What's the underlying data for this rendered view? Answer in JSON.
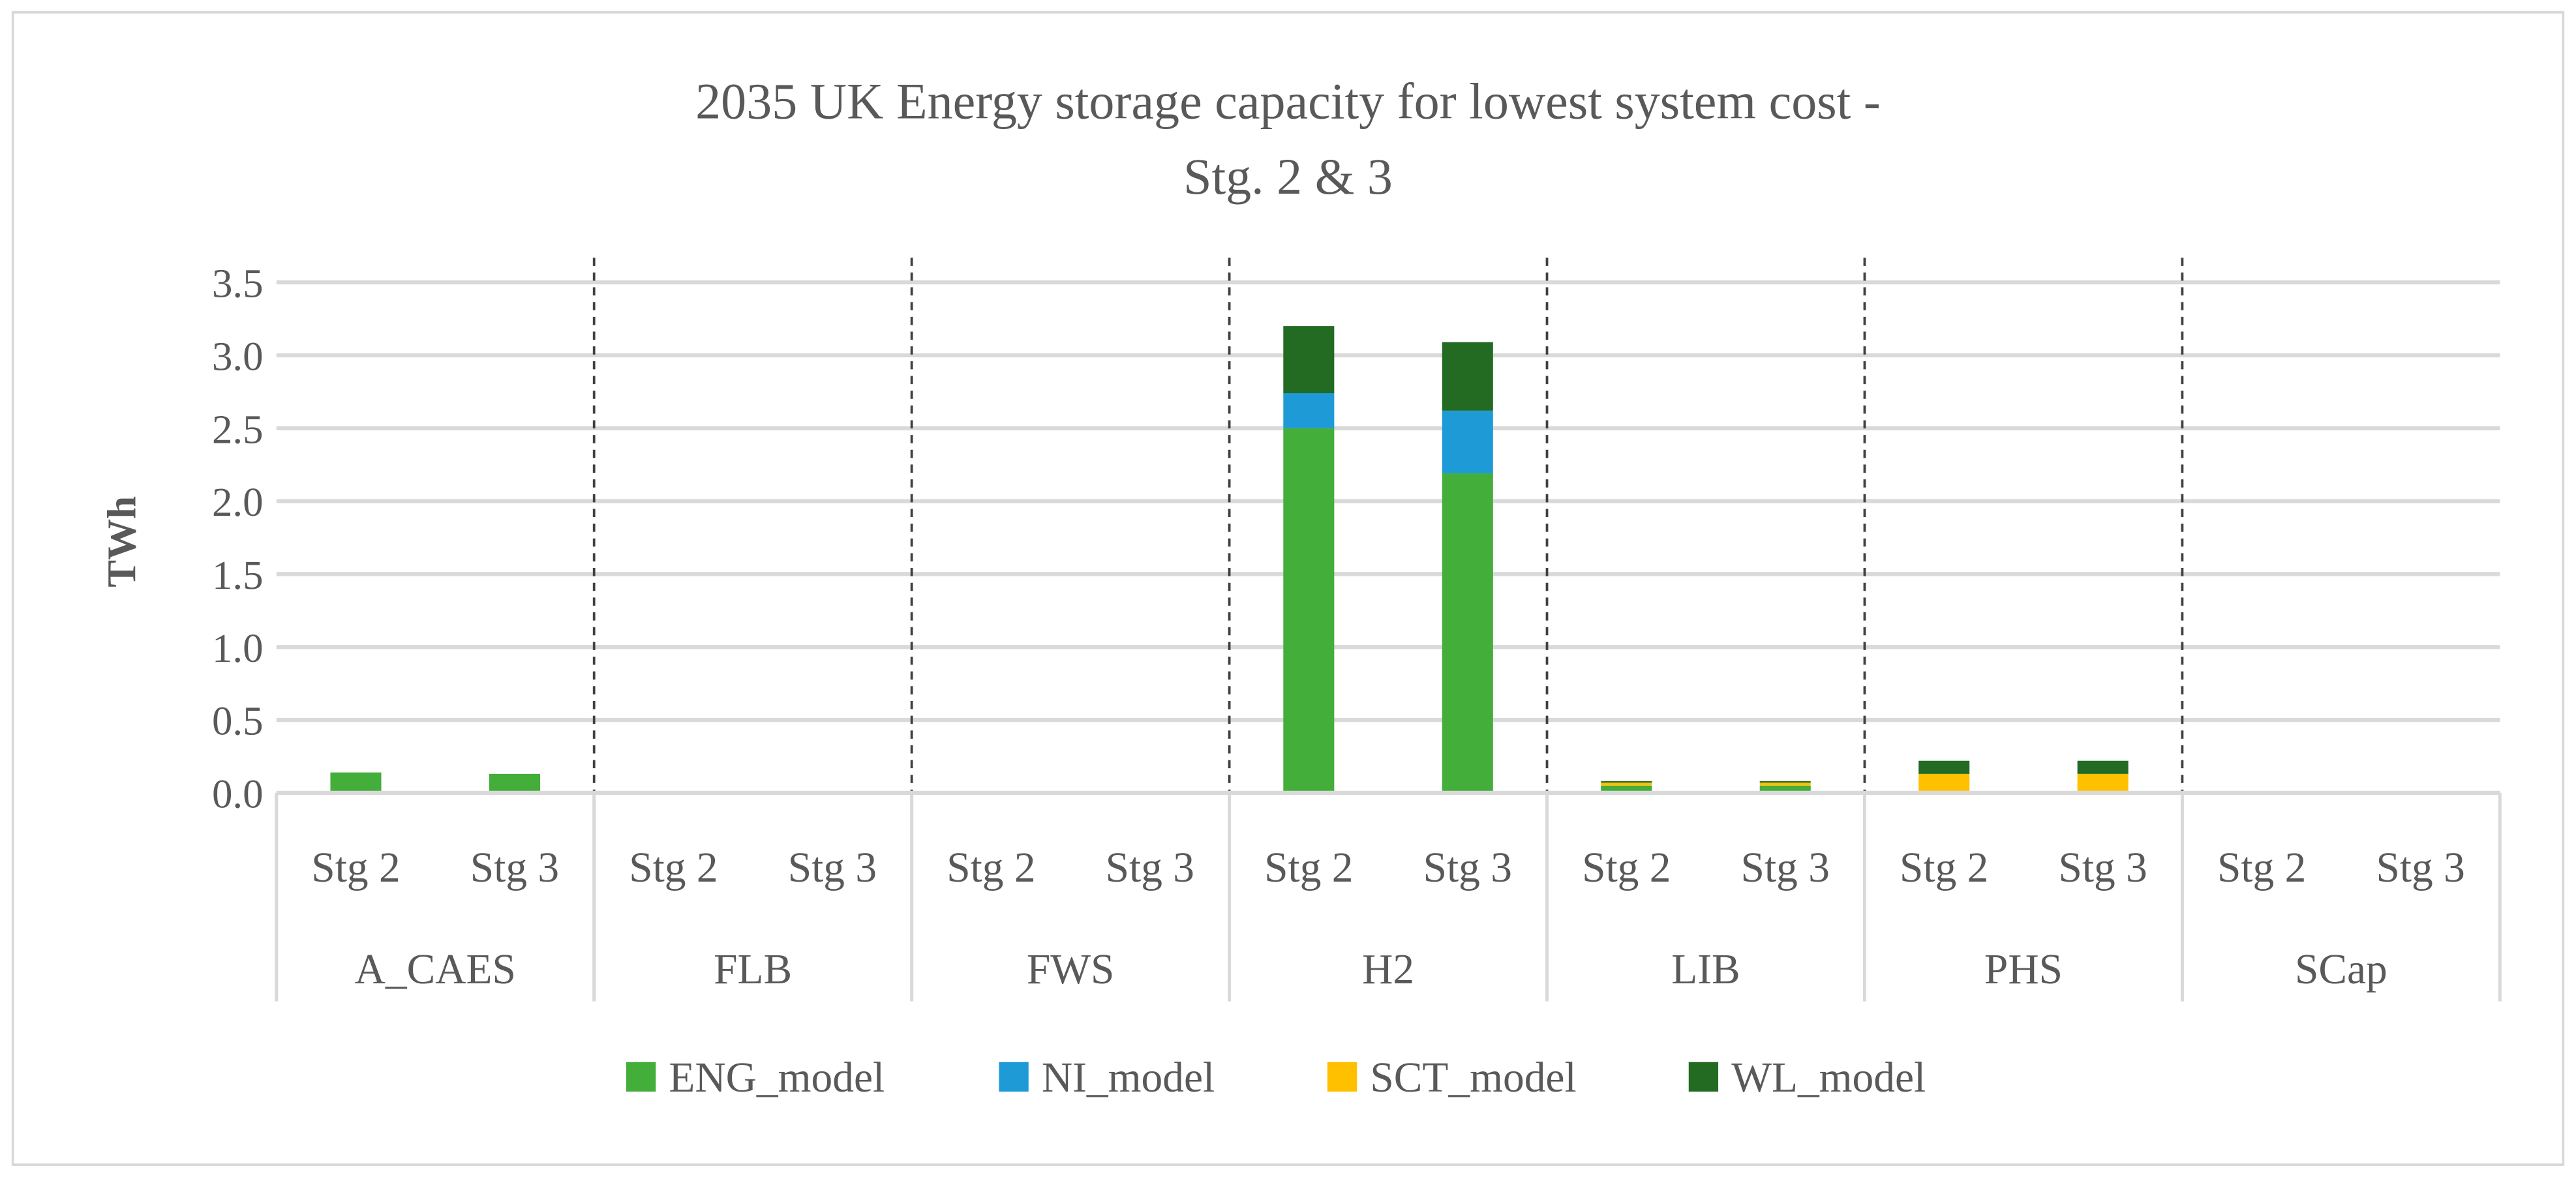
{
  "chart_data": {
    "type": "bar",
    "stacked": true,
    "title": "2035 UK Energy storage capacity for lowest system cost -",
    "subtitle": "Stg. 2 & 3",
    "xlabel": "",
    "ylabel": "TWh",
    "ylim": [
      0,
      3.5
    ],
    "yticks": [
      0.0,
      0.5,
      1.0,
      1.5,
      2.0,
      2.5,
      3.0,
      3.5
    ],
    "ytick_labels": [
      "0.0",
      "0.5",
      "1.0",
      "1.5",
      "2.0",
      "2.5",
      "3.0",
      "3.5"
    ],
    "grid": true,
    "legend_position": "bottom",
    "groups": [
      "A_CAES",
      "FLB",
      "FWS",
      "H2",
      "LIB",
      "PHS",
      "SCap"
    ],
    "subcategories": [
      "Stg 2",
      "Stg 3"
    ],
    "categories": [
      "A_CAES Stg 2",
      "A_CAES Stg 3",
      "FLB Stg 2",
      "FLB Stg 3",
      "FWS Stg 2",
      "FWS Stg 3",
      "H2 Stg 2",
      "H2 Stg 3",
      "LIB Stg 2",
      "LIB Stg 3",
      "PHS Stg 2",
      "PHS Stg 3",
      "SCap Stg 2",
      "SCap Stg 3"
    ],
    "series": [
      {
        "name": "ENG_model",
        "color": "#43ae3a",
        "values": [
          0.14,
          0.13,
          0,
          0,
          0,
          0,
          2.5,
          2.19,
          0.05,
          0.05,
          0.01,
          0.01,
          0,
          0
        ]
      },
      {
        "name": "NI_model",
        "color": "#1e9bd7",
        "values": [
          0,
          0,
          0,
          0,
          0,
          0,
          0.24,
          0.43,
          0,
          0,
          0,
          0,
          0,
          0
        ]
      },
      {
        "name": "SCT_model",
        "color": "#ffc000",
        "values": [
          0,
          0,
          0,
          0,
          0,
          0,
          0,
          0,
          0.02,
          0.02,
          0.12,
          0.12,
          0,
          0
        ]
      },
      {
        "name": "WL_model",
        "color": "#236a23",
        "values": [
          0,
          0,
          0,
          0,
          0,
          0,
          0.46,
          0.47,
          0.01,
          0.01,
          0.09,
          0.09,
          0,
          0
        ]
      }
    ]
  }
}
